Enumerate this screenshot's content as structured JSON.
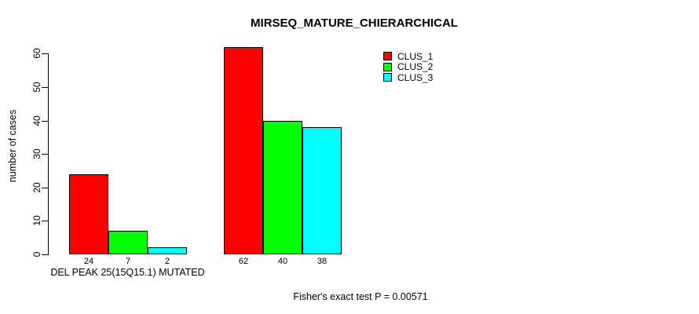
{
  "chart_data": {
    "type": "bar",
    "title": "MIRSEQ_MATURE_CHIERARCHICAL",
    "ylabel": "number of cases",
    "xlabel": "DEL PEAK 25(15Q15.1) MUTATED",
    "annotation": "Fisher's exact test P = 0.00571",
    "categories": [
      "DEL PEAK 25(15Q15.1) MUTATED",
      ""
    ],
    "series": [
      {
        "name": "CLUS_1",
        "color": "#ff0000",
        "values": [
          24,
          62
        ]
      },
      {
        "name": "CLUS_2",
        "color": "#00ff00",
        "values": [
          7,
          40
        ]
      },
      {
        "name": "CLUS_3",
        "color": "#00ffff",
        "values": [
          2,
          38
        ]
      }
    ],
    "bar_value_labels": [
      [
        24,
        7,
        2
      ],
      [
        62,
        40,
        38
      ]
    ],
    "ylim": [
      0,
      62
    ],
    "yticks": [
      0,
      10,
      20,
      30,
      40,
      50,
      60
    ],
    "grid": false,
    "legend_position": "top-right",
    "colors": {
      "background": "#ffffff",
      "axis": "#000000",
      "text": "#000000"
    }
  }
}
